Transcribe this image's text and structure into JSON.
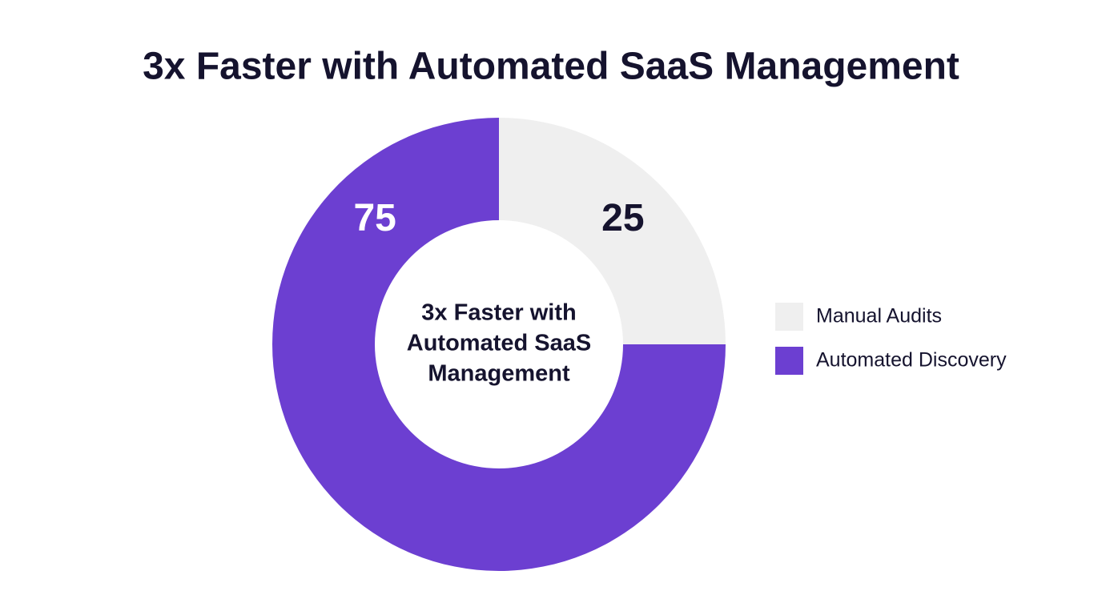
{
  "chart_data": {
    "type": "donut",
    "title": "3x Faster with Automated SaaS Management",
    "center_text": [
      "3x Faster with",
      "Automated SaaS",
      "Management"
    ],
    "categories": [
      "Manual Audits",
      "Automated Discovery"
    ],
    "values": [
      25,
      75
    ],
    "colors": [
      "#efefef",
      "#6c3fd1"
    ],
    "legend": "right"
  }
}
